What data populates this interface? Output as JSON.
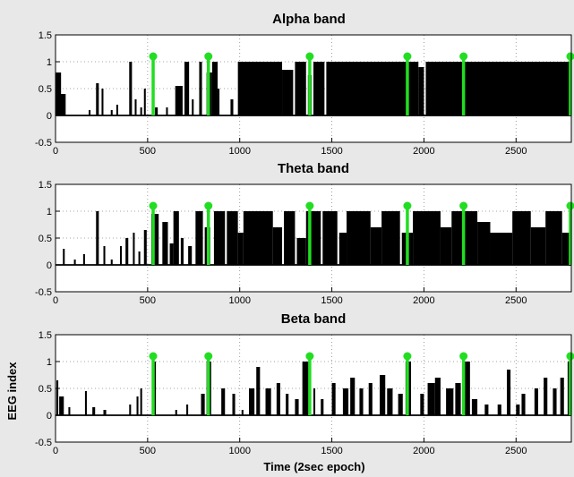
{
  "chart_data": {
    "type": "line",
    "figure_background": "#e8e8e8",
    "plot_background": "#ffffff",
    "signal_color": "#000000",
    "marker_color": "#22dd22",
    "grid": "dotted",
    "shared_xlabel": "Time (2sec epoch)",
    "shared_ylabel": "EEG index",
    "xlim": [
      0,
      2800
    ],
    "ylim": [
      -0.5,
      1.5
    ],
    "xticks": [
      0,
      500,
      1000,
      1500,
      2000,
      2500
    ],
    "xtick_labels": [
      "0",
      "500",
      "1000",
      "1500",
      "2000",
      "2500"
    ],
    "yticks": [
      -0.5,
      0,
      0.5,
      1,
      1.5
    ],
    "ytick_labels": [
      "-0.5",
      "0",
      "0.5",
      "1",
      "1.5"
    ],
    "markers": {
      "x": [
        530,
        830,
        1380,
        1910,
        2215,
        2795
      ],
      "y": 1.1
    },
    "panels": [
      {
        "title": "Alpha band",
        "segments": [
          [
            0,
            30,
            0.8
          ],
          [
            20,
            35,
            0.4
          ],
          [
            180,
            10,
            0.1
          ],
          [
            220,
            15,
            0.6
          ],
          [
            250,
            10,
            0.5
          ],
          [
            300,
            10,
            0.1
          ],
          [
            330,
            10,
            0.2
          ],
          [
            400,
            15,
            1.0
          ],
          [
            430,
            10,
            0.3
          ],
          [
            460,
            10,
            0.15
          ],
          [
            480,
            10,
            0.5
          ],
          [
            540,
            15,
            0.15
          ],
          [
            600,
            10,
            0.15
          ],
          [
            650,
            40,
            0.55
          ],
          [
            700,
            25,
            1.0
          ],
          [
            740,
            10,
            0.3
          ],
          [
            780,
            15,
            1.0
          ],
          [
            820,
            30,
            0.8
          ],
          [
            850,
            30,
            1.0
          ],
          [
            880,
            10,
            0.5
          ],
          [
            950,
            15,
            0.3
          ],
          [
            990,
            240,
            1.0
          ],
          [
            1230,
            60,
            0.85
          ],
          [
            1300,
            60,
            1.0
          ],
          [
            1370,
            20,
            0.75
          ],
          [
            1400,
            60,
            1.0
          ],
          [
            1470,
            500,
            1.0
          ],
          [
            1970,
            30,
            0.9
          ],
          [
            2010,
            790,
            1.0
          ]
        ]
      },
      {
        "title": "Theta band",
        "segments": [
          [
            40,
            10,
            0.3
          ],
          [
            100,
            10,
            0.1
          ],
          [
            150,
            10,
            0.2
          ],
          [
            220,
            15,
            1.0
          ],
          [
            260,
            10,
            0.35
          ],
          [
            300,
            10,
            0.1
          ],
          [
            350,
            10,
            0.35
          ],
          [
            380,
            15,
            0.5
          ],
          [
            420,
            10,
            0.6
          ],
          [
            450,
            10,
            0.25
          ],
          [
            480,
            15,
            0.65
          ],
          [
            520,
            40,
            0.95
          ],
          [
            580,
            30,
            0.8
          ],
          [
            620,
            20,
            0.4
          ],
          [
            640,
            30,
            1.0
          ],
          [
            680,
            15,
            0.5
          ],
          [
            720,
            20,
            0.35
          ],
          [
            760,
            40,
            1.0
          ],
          [
            810,
            30,
            0.7
          ],
          [
            860,
            60,
            1.0
          ],
          [
            930,
            60,
            1.0
          ],
          [
            990,
            30,
            0.6
          ],
          [
            1020,
            160,
            1.0
          ],
          [
            1180,
            50,
            0.7
          ],
          [
            1240,
            60,
            1.0
          ],
          [
            1310,
            50,
            0.5
          ],
          [
            1360,
            80,
            1.0
          ],
          [
            1450,
            80,
            1.0
          ],
          [
            1540,
            40,
            0.6
          ],
          [
            1580,
            130,
            1.0
          ],
          [
            1710,
            60,
            0.7
          ],
          [
            1770,
            100,
            1.0
          ],
          [
            1880,
            60,
            0.6
          ],
          [
            1940,
            150,
            1.0
          ],
          [
            2090,
            60,
            0.7
          ],
          [
            2150,
            140,
            1.0
          ],
          [
            2290,
            70,
            0.8
          ],
          [
            2360,
            120,
            0.6
          ],
          [
            2480,
            100,
            1.0
          ],
          [
            2580,
            80,
            0.7
          ],
          [
            2660,
            90,
            1.0
          ],
          [
            2750,
            50,
            0.6
          ]
        ]
      },
      {
        "title": "Beta band",
        "segments": [
          [
            5,
            10,
            0.65
          ],
          [
            20,
            25,
            0.35
          ],
          [
            70,
            10,
            0.15
          ],
          [
            160,
            10,
            0.45
          ],
          [
            200,
            15,
            0.15
          ],
          [
            260,
            15,
            0.1
          ],
          [
            400,
            10,
            0.2
          ],
          [
            440,
            10,
            0.35
          ],
          [
            460,
            10,
            0.5
          ],
          [
            530,
            15,
            1.0
          ],
          [
            650,
            10,
            0.1
          ],
          [
            710,
            10,
            0.2
          ],
          [
            790,
            20,
            0.4
          ],
          [
            820,
            25,
            1.0
          ],
          [
            900,
            20,
            0.5
          ],
          [
            960,
            15,
            0.4
          ],
          [
            1010,
            10,
            0.1
          ],
          [
            1050,
            30,
            0.5
          ],
          [
            1090,
            20,
            0.9
          ],
          [
            1140,
            30,
            0.5
          ],
          [
            1200,
            20,
            0.6
          ],
          [
            1250,
            15,
            0.4
          ],
          [
            1300,
            20,
            0.3
          ],
          [
            1340,
            40,
            1.0
          ],
          [
            1400,
            10,
            0.5
          ],
          [
            1440,
            15,
            0.3
          ],
          [
            1500,
            20,
            0.6
          ],
          [
            1560,
            30,
            0.5
          ],
          [
            1600,
            25,
            0.7
          ],
          [
            1650,
            20,
            0.5
          ],
          [
            1700,
            20,
            0.6
          ],
          [
            1760,
            30,
            0.75
          ],
          [
            1800,
            30,
            0.5
          ],
          [
            1860,
            25,
            0.4
          ],
          [
            1900,
            30,
            1.0
          ],
          [
            1980,
            20,
            0.4
          ],
          [
            2020,
            40,
            0.6
          ],
          [
            2060,
            30,
            0.7
          ],
          [
            2120,
            40,
            0.5
          ],
          [
            2170,
            30,
            0.6
          ],
          [
            2220,
            30,
            1.0
          ],
          [
            2260,
            30,
            0.3
          ],
          [
            2330,
            20,
            0.2
          ],
          [
            2400,
            20,
            0.2
          ],
          [
            2450,
            20,
            0.85
          ],
          [
            2500,
            20,
            0.2
          ],
          [
            2530,
            20,
            0.4
          ],
          [
            2600,
            20,
            0.5
          ],
          [
            2650,
            20,
            0.7
          ],
          [
            2700,
            20,
            0.5
          ],
          [
            2740,
            20,
            0.7
          ],
          [
            2780,
            20,
            1.0
          ]
        ]
      }
    ]
  }
}
